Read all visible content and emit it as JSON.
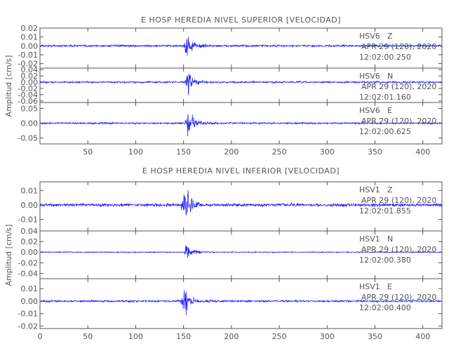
{
  "chart_data": [
    {
      "type": "line",
      "title": "E HOSP HEREDIA NIVEL SUPERIOR [VELOCIDAD]",
      "ylabel": "Amplitud [cm/s]",
      "xlabel": "",
      "xlim": [
        0,
        420
      ],
      "x_ticks": [
        "50",
        "100",
        "150",
        "200",
        "250",
        "300",
        "350",
        "400"
      ],
      "traces": [
        {
          "station": "HSV6",
          "component": "Z",
          "date": "APR 29 (120), 2020",
          "time": "12:02:00.250",
          "ylim": [
            -0.025,
            0.02
          ],
          "y_ticks": [
            "0.02",
            "0.01",
            "0.00",
            "-0.01",
            "-0.02"
          ],
          "noise_amplitude": 0.0012,
          "event_onset": 150,
          "peak_time": 153,
          "peak_amplitude": 0.016
        },
        {
          "station": "HSV6",
          "component": "N",
          "date": "APR 29 (120), 2020",
          "time": "12:02:01.160",
          "ylim": [
            -0.065,
            0.045
          ],
          "y_ticks": [
            "0.04",
            "0.02",
            "0.00",
            "-0.02",
            "-0.04",
            "-0.06"
          ],
          "noise_amplitude": 0.003,
          "event_onset": 150,
          "peak_time": 155,
          "peak_amplitude": 0.035
        },
        {
          "station": "HSV6",
          "component": "E",
          "date": "APR 29 (120), 2020",
          "time": "12:02:00.625",
          "ylim": [
            -0.07,
            0.07
          ],
          "y_ticks": [
            "0.05",
            "0.00",
            "-0.05"
          ],
          "noise_amplitude": 0.003,
          "event_onset": 151,
          "peak_time": 155,
          "peak_amplitude": 0.055
        }
      ]
    },
    {
      "type": "line",
      "title": "E HOSP HEREDIA NIVEL INFERIOR [VELOCIDAD]",
      "ylabel": "Amplitud [cm/s]",
      "xlabel": "",
      "xlim": [
        0,
        420
      ],
      "x_ticks": [
        "0",
        "50",
        "100",
        "150",
        "200",
        "250",
        "300",
        "350",
        "400"
      ],
      "traces": [
        {
          "station": "HSV1",
          "component": "Z",
          "date": "APR 29 (120), 2020",
          "time": "12:02:01.855",
          "ylim": [
            -0.018,
            0.016
          ],
          "y_ticks": [
            "0.01",
            "0.00",
            "-0.01"
          ],
          "noise_amplitude": 0.0011,
          "event_onset": 146,
          "peak_time": 152,
          "peak_amplitude": 0.012
        },
        {
          "station": "HSV1",
          "component": "N",
          "date": "APR 29 (120), 2020",
          "time": "12:02:00.380",
          "ylim": [
            -0.05,
            0.04
          ],
          "y_ticks": [
            "0.04",
            "0.02",
            "0.00",
            "-0.02",
            "-0.04"
          ],
          "noise_amplitude": 0.001,
          "event_onset": 150,
          "peak_time": 153,
          "peak_amplitude": 0.018
        },
        {
          "station": "HSV1",
          "component": "E",
          "date": "APR 29 (120), 2020",
          "time": "12:02:00.400",
          "ylim": [
            -0.022,
            0.018
          ],
          "y_ticks": [
            "0.01",
            "0.00",
            "-0.01",
            "-0.02"
          ],
          "noise_amplitude": 0.0008,
          "event_onset": 145,
          "peak_time": 152,
          "peak_amplitude": 0.012
        }
      ]
    }
  ],
  "colors": {
    "trace": "#1a1aff",
    "axis": "#555555",
    "background": "#ffffff"
  }
}
